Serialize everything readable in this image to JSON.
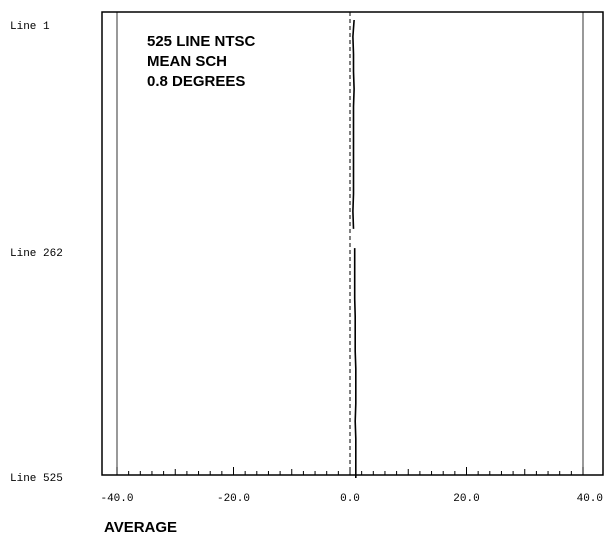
{
  "chart_data": {
    "type": "line",
    "title": "",
    "xlabel": "AVERAGE",
    "ylabel": "",
    "xlim": [
      -40.0,
      40.0
    ],
    "x_ticks": [
      -40.0,
      -20.0,
      0.0,
      20.0,
      40.0
    ],
    "x_tick_labels": [
      "-40.0",
      "-20.0",
      "0.0",
      "20.0",
      "40.0"
    ],
    "y_range": [
      1,
      525
    ],
    "y_tick_values": [
      1,
      262,
      525
    ],
    "y_tick_labels": [
      "Line 1",
      "Line 262",
      "Line 525"
    ],
    "annotation": [
      "525 LINE NTSC",
      "MEAN SCH",
      "0.8 DEGREES"
    ],
    "reference_x": 0.0,
    "series": [
      {
        "lines": [
          1,
          20,
          40,
          60,
          80,
          100,
          120,
          140,
          160,
          180,
          200,
          220,
          240,
          262,
          280,
          300,
          320,
          340,
          360,
          380,
          400,
          420,
          440,
          460,
          480,
          500,
          525
        ],
        "values": [
          0.7,
          0.5,
          0.6,
          0.6,
          0.7,
          0.6,
          0.6,
          0.6,
          0.6,
          0.6,
          0.6,
          0.5,
          0.6,
          0.8,
          0.8,
          0.8,
          0.8,
          0.9,
          0.9,
          0.9,
          1.0,
          1.0,
          1.0,
          0.9,
          1.0,
          1.0,
          1.0
        ]
      }
    ]
  }
}
